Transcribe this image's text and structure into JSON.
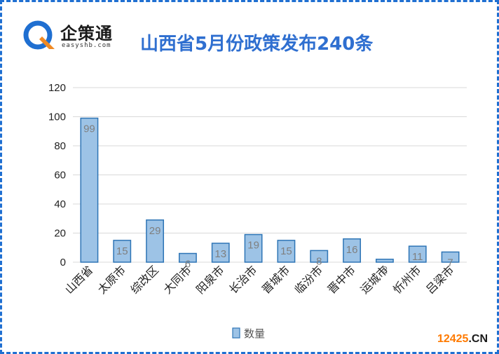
{
  "logo": {
    "name": "企策通",
    "domain": "easyshb.com"
  },
  "colors": {
    "frame": "#1f6fd1",
    "bar_fill": "#9dc3e6",
    "bar_stroke": "#2e75b6",
    "title": "#2f6fd0"
  },
  "watermark": {
    "part1": "12425",
    "part2": ".CN",
    "color1": "#ff7a00",
    "color2": "#1a1a1a"
  },
  "chart_data": {
    "type": "bar",
    "title": "山西省5月份政策发布240条",
    "categories": [
      "山西省",
      "太原市",
      "综改区",
      "大同市",
      "阳泉市",
      "长治市",
      "晋城市",
      "临汾市",
      "晋中市",
      "运城市",
      "忻州市",
      "吕梁市"
    ],
    "series": [
      {
        "name": "数量",
        "values": [
          99,
          15,
          29,
          6,
          13,
          19,
          15,
          8,
          16,
          2,
          11,
          7
        ]
      }
    ],
    "ylim": [
      0,
      120
    ],
    "yticks": [
      0,
      20,
      40,
      60,
      80,
      100,
      120
    ],
    "grid": true,
    "legend": "bottom",
    "data_labels": true
  }
}
